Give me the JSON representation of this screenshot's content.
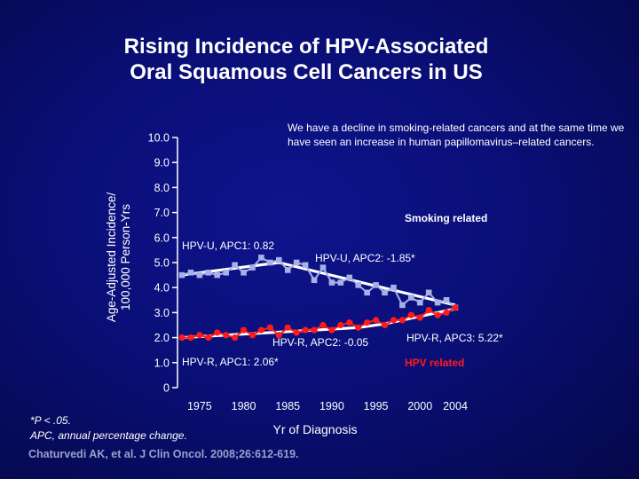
{
  "colors": {
    "background": "#0a0f78",
    "smoking_series": "#a8b0e8",
    "hpv_series": "#ff1a1a",
    "trend_line": "#ffffff",
    "citation": "#9aa0c8"
  },
  "title": {
    "line1": "Rising Incidence of HPV-Associated",
    "line2": "Oral Squamous Cell Cancers in US"
  },
  "note": "We have a decline in smoking‑related cancers and at the same time we have seen an increase in human papillomavirus–related cancers.",
  "footnote": {
    "line1": "*P < .05.",
    "line2": "APC, annual percentage change."
  },
  "citation": "Chaturvedi AK, et al. J Clin Oncol. 2008;26:612-619.",
  "chart_data": {
    "type": "line",
    "title": "Rising Incidence of HPV-Associated Oral Squamous Cell Cancers in US",
    "xlabel": "Yr of Diagnosis",
    "ylabel_line1": "Age-Adjusted Incidence/",
    "ylabel_line2": "100,000 Person-Yrs",
    "xlim": [
      1973,
      2004
    ],
    "ylim": [
      0,
      10
    ],
    "y_ticks": [
      {
        "value": 0,
        "label": "0"
      },
      {
        "value": 1,
        "label": "1.0"
      },
      {
        "value": 2,
        "label": "2.0"
      },
      {
        "value": 3,
        "label": "3.0"
      },
      {
        "value": 4,
        "label": "4.0"
      },
      {
        "value": 5,
        "label": "5.0"
      },
      {
        "value": 6,
        "label": "6.0"
      },
      {
        "value": 7,
        "label": "7.0"
      },
      {
        "value": 8,
        "label": "8.0"
      },
      {
        "value": 9,
        "label": "9.0"
      },
      {
        "value": 10,
        "label": "10.0"
      }
    ],
    "x_ticks": [
      {
        "value": 1975,
        "label": "1975"
      },
      {
        "value": 1980,
        "label": "1980"
      },
      {
        "value": 1985,
        "label": "1985"
      },
      {
        "value": 1990,
        "label": "1990"
      },
      {
        "value": 1995,
        "label": "1995"
      },
      {
        "value": 2000,
        "label": "2000"
      },
      {
        "value": 2004,
        "label": "2004"
      }
    ],
    "x": [
      1973,
      1974,
      1975,
      1976,
      1977,
      1978,
      1979,
      1980,
      1981,
      1982,
      1983,
      1984,
      1985,
      1986,
      1987,
      1988,
      1989,
      1990,
      1991,
      1992,
      1993,
      1994,
      1995,
      1996,
      1997,
      1998,
      1999,
      2000,
      2001,
      2002,
      2003,
      2004
    ],
    "series": [
      {
        "name": "Smoking related",
        "color": "#a8b0e8",
        "values": [
          4.5,
          4.6,
          4.5,
          4.6,
          4.5,
          4.6,
          4.9,
          4.6,
          4.8,
          5.2,
          5.0,
          5.1,
          4.7,
          5.0,
          4.9,
          4.3,
          4.8,
          4.2,
          4.2,
          4.4,
          4.1,
          3.8,
          4.1,
          3.8,
          4.0,
          3.3,
          3.6,
          3.4,
          3.8,
          3.4,
          3.5,
          3.2
        ]
      },
      {
        "name": "HPV related",
        "color": "#ff1a1a",
        "values": [
          2.0,
          2.0,
          2.1,
          2.0,
          2.2,
          2.1,
          2.0,
          2.3,
          2.1,
          2.3,
          2.4,
          2.1,
          2.4,
          2.2,
          2.3,
          2.3,
          2.5,
          2.3,
          2.5,
          2.6,
          2.4,
          2.6,
          2.7,
          2.5,
          2.7,
          2.7,
          2.9,
          2.8,
          3.1,
          2.9,
          3.0,
          3.2
        ]
      }
    ],
    "trend_lines": [
      {
        "name": "smoking-trend",
        "points": [
          [
            1973,
            4.5
          ],
          [
            1984,
            5.0
          ],
          [
            2004,
            3.3
          ]
        ]
      },
      {
        "name": "hpv-trend",
        "points": [
          [
            1973,
            2.0
          ],
          [
            1993,
            2.4
          ],
          [
            1996,
            2.55
          ],
          [
            2004,
            3.15
          ]
        ]
      }
    ],
    "series_labels": {
      "smoking": "Smoking related",
      "hpv": "HPV related"
    },
    "annotations": {
      "hpv_u_apc1": "HPV-U, APC1: 0.82",
      "hpv_u_apc2": "HPV-U, APC2: -1.85*",
      "hpv_r_apc1": "HPV-R, APC1: 2.06*",
      "hpv_r_apc2": "HPV-R, APC2: -0.05",
      "hpv_r_apc3": "HPV-R, APC3: 5.22*"
    }
  }
}
